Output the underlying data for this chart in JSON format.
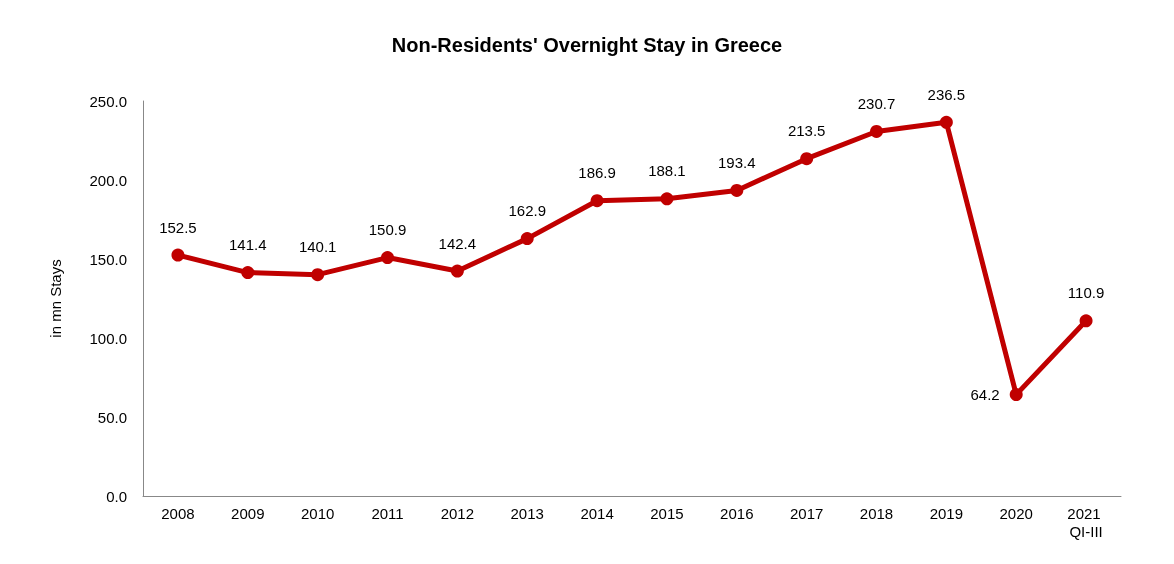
{
  "chart_data": {
    "type": "line",
    "title": "Non-Residents' Overnight Stay in Greece",
    "ylabel": "in mn Stays",
    "categories": [
      "2008",
      "2009",
      "2010",
      "2011",
      "2012",
      "2013",
      "2014",
      "2015",
      "2016",
      "2017",
      "2018",
      "2019",
      "2020",
      "2021 QI-III"
    ],
    "series": [
      {
        "color": "#c00000",
        "values": [
          152.5,
          141.4,
          140.1,
          150.9,
          142.4,
          162.9,
          186.9,
          188.1,
          193.4,
          213.5,
          230.7,
          236.5,
          64.2,
          110.9
        ]
      }
    ],
    "ylim": [
      0,
      250
    ],
    "yticks": [
      {
        "value": 0,
        "label": "0.0"
      },
      {
        "value": 50,
        "label": "50.0"
      },
      {
        "value": 100,
        "label": "100.0"
      },
      {
        "value": 150,
        "label": "150.0"
      },
      {
        "value": 200,
        "label": "200.0"
      },
      {
        "value": 250,
        "label": "250.0"
      }
    ],
    "grid": false,
    "marker": "circle",
    "line_style": "solid",
    "data_labels": true
  }
}
